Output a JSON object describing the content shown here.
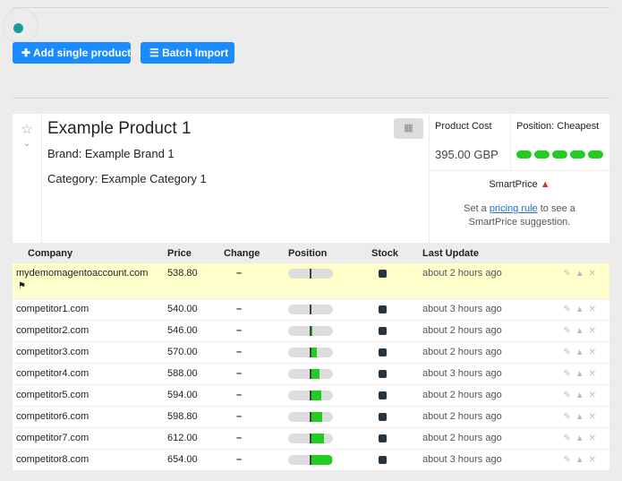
{
  "buttons": [
    "Add single product",
    "Batch Import"
  ],
  "product": {
    "title": "Example Product 1",
    "brand": "Brand: Example Brand 1",
    "category": "Category: Example Category 1"
  },
  "cost": {
    "label": "Product Cost",
    "value": "395.00 GBP"
  },
  "position": {
    "label": "Position: Cheapest"
  },
  "smartprice": {
    "title": "SmartPrice",
    "text_before": "Set a",
    "link": "pricing rule",
    "text_after": "to see a SmartPrice suggestion."
  },
  "table": {
    "columns": [
      "Company",
      "Price",
      "Change",
      "Position",
      "Stock",
      "Last Update"
    ],
    "rows": [
      {
        "company": "mydemomagentoaccount.com",
        "price": "538.80",
        "change": "–",
        "updated": "about 2 hours ago"
      },
      {
        "company": "competitor1.com",
        "price": "540.00",
        "change": "–",
        "updated": "about 3 hours ago"
      },
      {
        "company": "competitor2.com",
        "price": "546.00",
        "change": "–",
        "updated": "about 2 hours ago"
      },
      {
        "company": "competitor3.com",
        "price": "570.00",
        "change": "–",
        "updated": "about 2 hours ago"
      },
      {
        "company": "competitor4.com",
        "price": "588.00",
        "change": "–",
        "updated": "about 3 hours ago"
      },
      {
        "company": "competitor5.com",
        "price": "594.00",
        "change": "–",
        "updated": "about 2 hours ago"
      },
      {
        "company": "competitor6.com",
        "price": "598.80",
        "change": "–",
        "updated": "about 2 hours ago"
      },
      {
        "company": "competitor7.com",
        "price": "612.00",
        "change": "–",
        "updated": "about 2 hours ago"
      },
      {
        "company": "competitor8.com",
        "price": "654.00",
        "change": "–",
        "updated": "about 3 hours ago"
      }
    ]
  }
}
